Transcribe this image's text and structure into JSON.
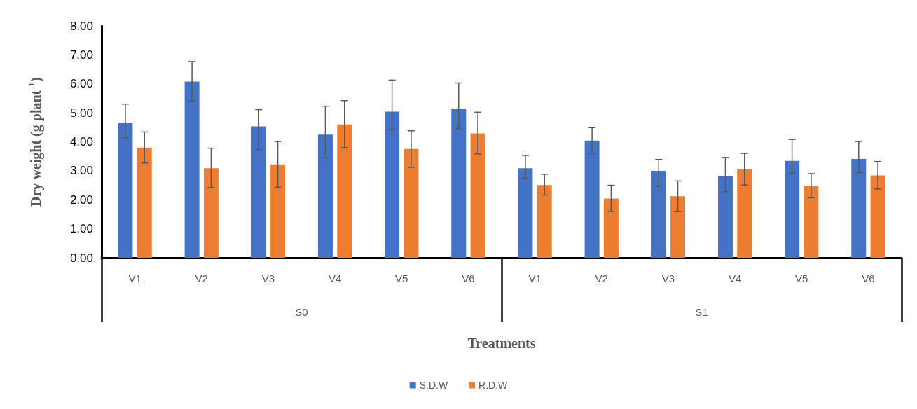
{
  "chart_data": {
    "type": "bar",
    "xlabel": "Treatments",
    "ylabel": "Dry weight (g plant$^{-1}$)",
    "categories": [
      "V1",
      "V2",
      "V3",
      "V4",
      "V5",
      "V6",
      "V1",
      "V2",
      "V3",
      "V4",
      "V5",
      "V6"
    ],
    "annotations": [
      "S0",
      "S1"
    ],
    "series": [
      {
        "name": "S.D.W",
        "color": "#4472c4",
        "values": [
          4.66,
          6.08,
          4.53,
          4.25,
          5.04,
          5.15,
          3.09,
          4.04,
          3.0,
          2.82,
          3.34,
          3.41
        ],
        "errors": [
          [
            4.13,
            5.3
          ],
          [
            5.4,
            6.77
          ],
          [
            3.73,
            5.11
          ],
          [
            3.44,
            5.23
          ],
          [
            4.42,
            6.13
          ],
          [
            4.45,
            6.03
          ],
          [
            2.74,
            3.53
          ],
          [
            3.59,
            4.49
          ],
          [
            2.46,
            3.39
          ],
          [
            2.28,
            3.46
          ],
          [
            2.92,
            4.08
          ],
          [
            2.94,
            4.01
          ]
        ]
      },
      {
        "name": "R.D.W",
        "color": "#ed7d31",
        "values": [
          3.8,
          3.09,
          3.22,
          4.6,
          3.75,
          4.29,
          2.51,
          2.04,
          2.12,
          3.05,
          2.48,
          2.84
        ],
        "errors": [
          [
            3.27,
            4.34
          ],
          [
            2.42,
            3.78
          ],
          [
            2.43,
            4.01
          ],
          [
            3.8,
            5.42
          ],
          [
            3.12,
            4.38
          ],
          [
            3.58,
            5.02
          ],
          [
            2.16,
            2.88
          ],
          [
            1.59,
            2.5
          ],
          [
            1.6,
            2.65
          ],
          [
            2.51,
            3.6
          ],
          [
            2.07,
            2.9
          ],
          [
            2.37,
            3.32
          ]
        ]
      }
    ],
    "ylim": [
      0,
      8
    ],
    "yticks": [
      {
        "value": 0,
        "label": "0.00"
      },
      {
        "value": 1,
        "label": "1.00"
      },
      {
        "value": 2,
        "label": "2.00"
      },
      {
        "value": 3,
        "label": "3.00"
      },
      {
        "value": 4,
        "label": "4.00"
      },
      {
        "value": 5,
        "label": "5.00"
      },
      {
        "value": 6,
        "label": "6.00"
      },
      {
        "value": 7,
        "label": "7.00"
      },
      {
        "value": 8,
        "label": "8.00"
      }
    ],
    "grid": false,
    "legend": "bottom"
  }
}
